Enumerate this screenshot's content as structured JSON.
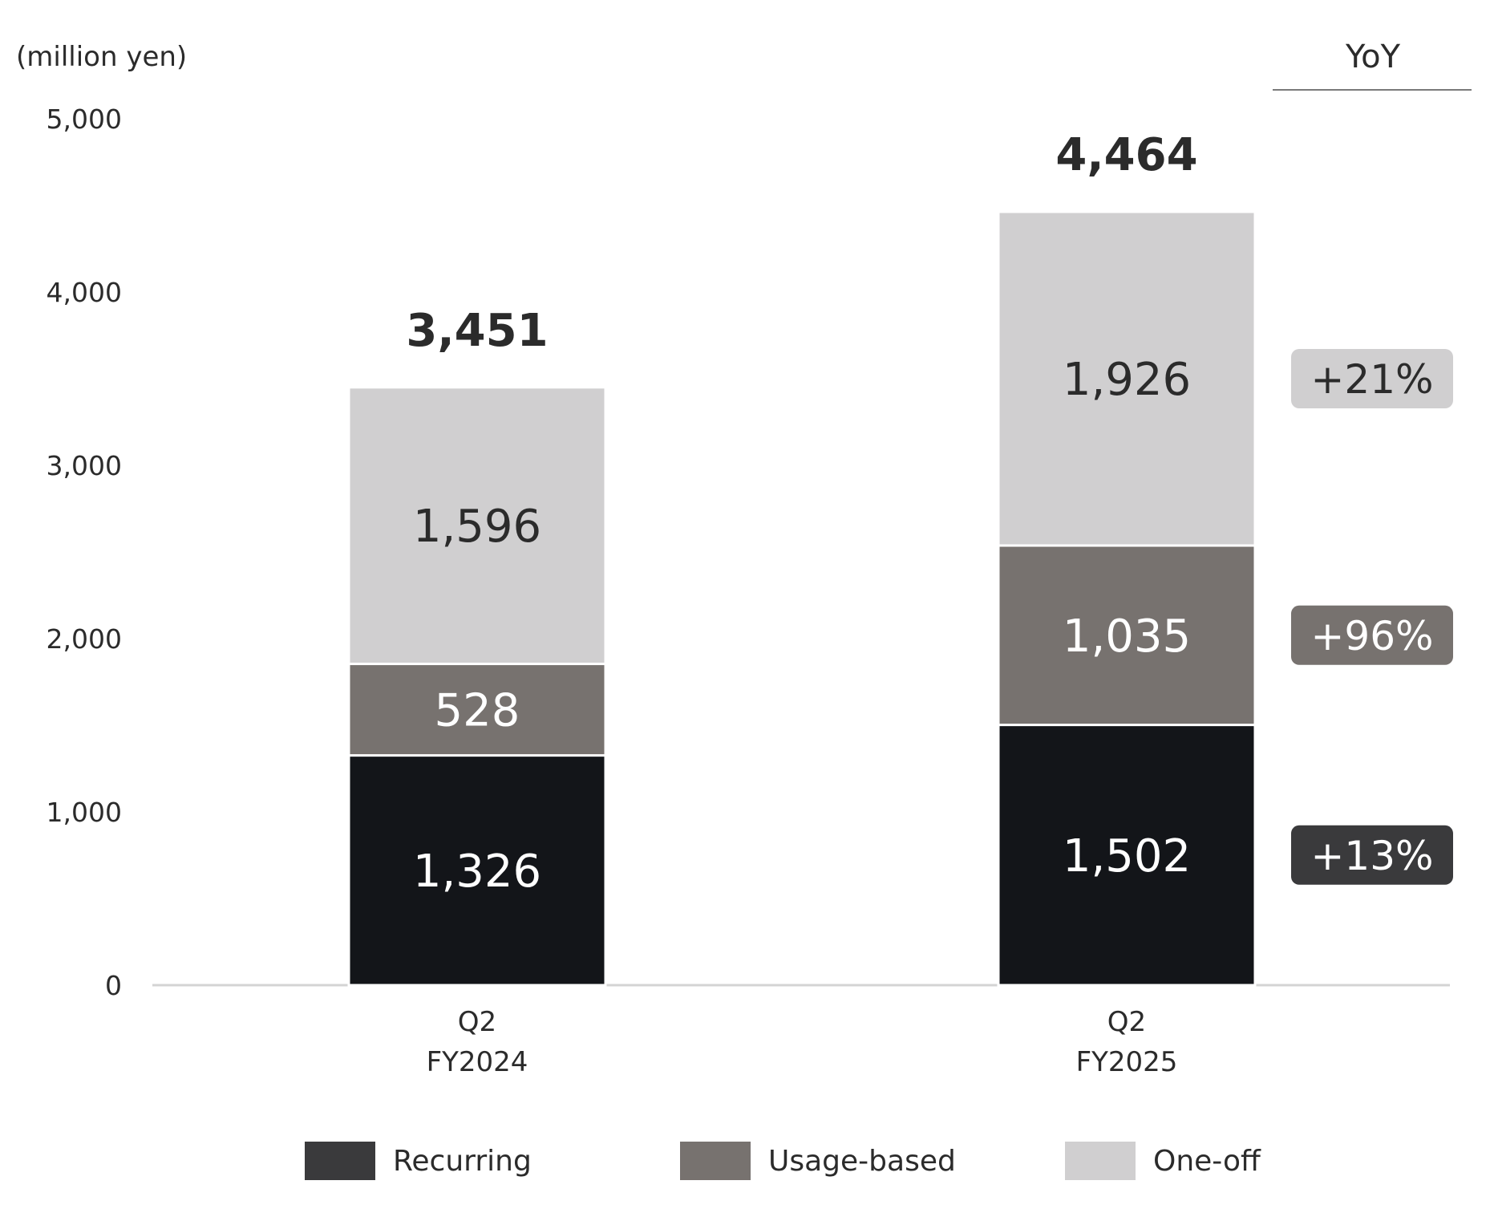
{
  "chart_data": {
    "type": "bar",
    "stacked": true,
    "unit_label": "(million yen)",
    "ylim": [
      0,
      5000
    ],
    "yticks": [
      0,
      1000,
      2000,
      3000,
      4000,
      5000
    ],
    "ytick_labels": [
      "0",
      "1,000",
      "2,000",
      "3,000",
      "4,000",
      "5,000"
    ],
    "categories": [
      [
        "Q2",
        "FY2024"
      ],
      [
        "Q2",
        "FY2025"
      ]
    ],
    "series": [
      {
        "name": "Recurring",
        "values": [
          1326,
          1502
        ],
        "labels": [
          "1,326",
          "1,502"
        ],
        "color": "#131519",
        "legend_color": "#3a3a3c",
        "label_color": "#ffffff",
        "yoy": "+13%"
      },
      {
        "name": "Usage-based",
        "values": [
          528,
          1035
        ],
        "labels": [
          "528",
          "1,035"
        ],
        "color": "#77726f",
        "legend_color": "#77726f",
        "label_color": "#ffffff",
        "yoy": "+96%"
      },
      {
        "name": "One-off",
        "values": [
          1596,
          1926
        ],
        "labels": [
          "1,596",
          "1,926"
        ],
        "color": "#d0cfd0",
        "legend_color": "#d0cfd0",
        "label_color": "#2b2b2b",
        "yoy": "+21%"
      }
    ],
    "totals": [
      "3,451",
      "4,464"
    ],
    "yoy_header": "YoY",
    "yoy_badge_colors": [
      "#3a3a3c",
      "#77726f",
      "#d0cfd0"
    ],
    "yoy_text_colors": [
      "#ffffff",
      "#ffffff",
      "#2b2b2b"
    ],
    "legend_position": "bottom",
    "grid": false
  }
}
